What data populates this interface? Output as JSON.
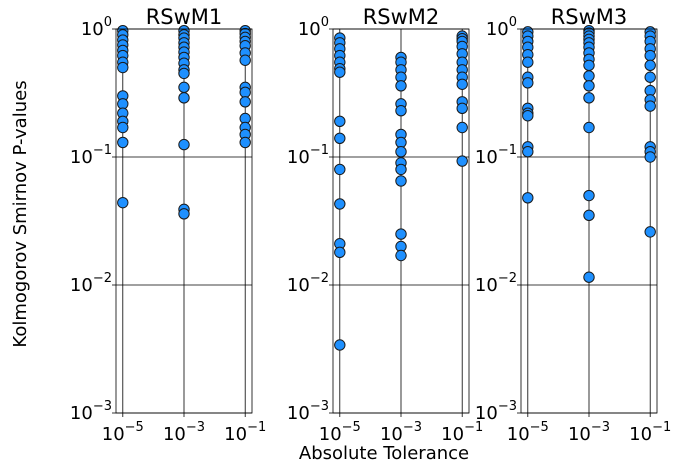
{
  "chart_data": {
    "type": "scatter",
    "xlabel": "Absolute Tolerance",
    "ylabel": "Kolmogorov Smirnov P-values",
    "yscale": "log",
    "ylim": [
      0.001,
      1
    ],
    "y_ticks": [
      {
        "base": "10",
        "exp": "0"
      },
      {
        "base": "10",
        "exp": "−1"
      },
      {
        "base": "10",
        "exp": "−2"
      },
      {
        "base": "10",
        "exp": "−3"
      }
    ],
    "categories": [
      {
        "base": "10",
        "exp": "−5"
      },
      {
        "base": "10",
        "exp": "−3"
      },
      {
        "base": "10",
        "exp": "−1"
      }
    ],
    "grid": true,
    "marker_color": "#1e90ff",
    "marker_edge_color": "#1a1a1a",
    "panels": [
      {
        "title": "RSwM1",
        "series": [
          {
            "values": [
              0.97,
              0.9,
              0.82,
              0.75,
              0.68,
              0.62,
              0.55,
              0.5,
              0.3,
              0.26,
              0.22,
              0.19,
              0.17,
              0.13,
              0.044
            ]
          },
          {
            "values": [
              0.97,
              0.9,
              0.85,
              0.78,
              0.72,
              0.66,
              0.6,
              0.54,
              0.48,
              0.45,
              0.35,
              0.29,
              0.125,
              0.039,
              0.036
            ]
          },
          {
            "values": [
              0.97,
              0.92,
              0.86,
              0.8,
              0.74,
              0.65,
              0.57,
              0.35,
              0.32,
              0.27,
              0.2,
              0.17,
              0.15,
              0.13
            ]
          }
        ]
      },
      {
        "title": "RSwM2",
        "series": [
          {
            "values": [
              0.85,
              0.78,
              0.7,
              0.62,
              0.55,
              0.49,
              0.46,
              0.19,
              0.14,
              0.08,
              0.043,
              0.021,
              0.018,
              0.0034
            ]
          },
          {
            "values": [
              0.6,
              0.55,
              0.48,
              0.42,
              0.36,
              0.26,
              0.23,
              0.15,
              0.13,
              0.11,
              0.09,
              0.08,
              0.065,
              0.025,
              0.02,
              0.017
            ]
          },
          {
            "values": [
              0.88,
              0.84,
              0.8,
              0.73,
              0.64,
              0.55,
              0.48,
              0.42,
              0.37,
              0.27,
              0.24,
              0.17,
              0.093
            ]
          }
        ]
      },
      {
        "title": "RSwM3",
        "series": [
          {
            "values": [
              0.95,
              0.88,
              0.8,
              0.72,
              0.63,
              0.55,
              0.42,
              0.38,
              0.24,
              0.22,
              0.21,
              0.12,
              0.11,
              0.048
            ]
          },
          {
            "values": [
              0.97,
              0.93,
              0.88,
              0.83,
              0.78,
              0.72,
              0.65,
              0.58,
              0.52,
              0.43,
              0.36,
              0.29,
              0.17,
              0.05,
              0.035,
              0.0115
            ]
          },
          {
            "values": [
              0.95,
              0.88,
              0.8,
              0.7,
              0.62,
              0.52,
              0.42,
              0.33,
              0.28,
              0.25,
              0.12,
              0.11,
              0.1,
              0.026
            ]
          }
        ]
      }
    ]
  }
}
